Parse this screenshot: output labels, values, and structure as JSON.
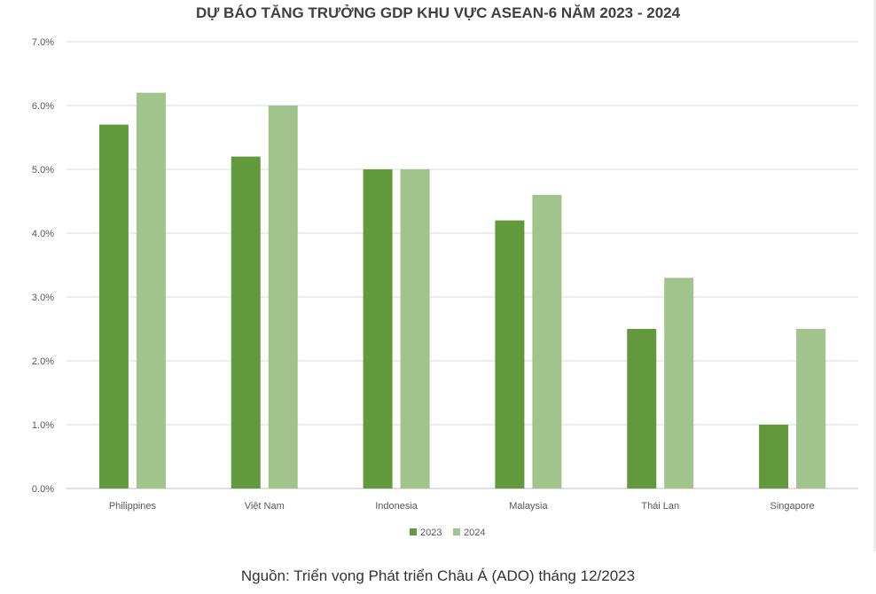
{
  "chart_data": {
    "type": "bar",
    "title": "DỰ BÁO TĂNG TRƯỞNG GDP KHU VỰC ASEAN-6 NĂM 2023 - 2024",
    "categories": [
      "Philippines",
      "Việt Nam",
      "Indonesia",
      "Malaysia",
      "Thái Lan",
      "Singapore"
    ],
    "series": [
      {
        "name": "2023",
        "values": [
          5.7,
          5.2,
          5.0,
          4.2,
          2.5,
          1.0
        ],
        "color": "#63993d"
      },
      {
        "name": "2024",
        "values": [
          6.2,
          6.0,
          5.0,
          4.6,
          3.3,
          2.5
        ],
        "color": "#a1c48c"
      }
    ],
    "ylim": [
      0,
      7
    ],
    "yticks": [
      "0.0%",
      "1.0%",
      "2.0%",
      "3.0%",
      "4.0%",
      "5.0%",
      "6.0%",
      "7.0%"
    ],
    "xlabel": "",
    "ylabel": "",
    "grid": true,
    "legend_position": "bottom"
  },
  "source": "Nguồn: Triển vọng Phát triển Châu Á (ADO) tháng 12/2023"
}
